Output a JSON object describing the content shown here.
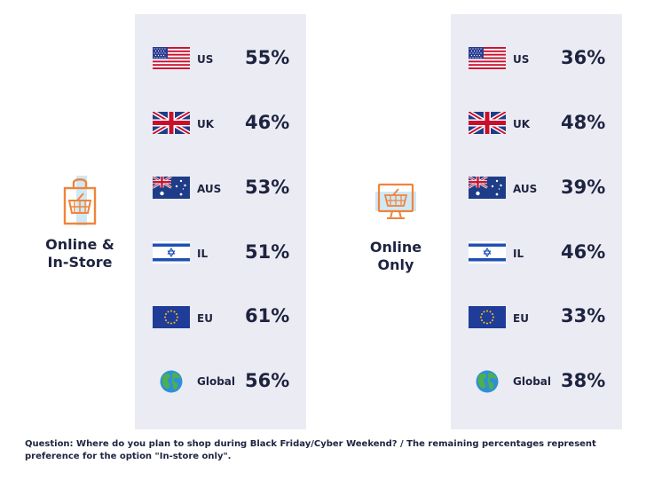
{
  "chart_data": {
    "type": "table",
    "categories": [
      "US",
      "UK",
      "AUS",
      "IL",
      "EU",
      "Global"
    ],
    "series": [
      {
        "name": "Online & In-Store",
        "values": [
          55,
          46,
          53,
          51,
          61,
          56
        ]
      },
      {
        "name": "Online Only",
        "values": [
          36,
          48,
          39,
          46,
          33,
          38
        ]
      }
    ],
    "unit": "%"
  },
  "panels": [
    {
      "title_line1": "Online &",
      "title_line2": "In-Store",
      "icon": "shopping-bag-basket-icon",
      "rows": [
        {
          "flag": "us-flag",
          "country": "US",
          "value": "55%"
        },
        {
          "flag": "uk-flag",
          "country": "UK",
          "value": "46%"
        },
        {
          "flag": "aus-flag",
          "country": "AUS",
          "value": "53%"
        },
        {
          "flag": "il-flag",
          "country": "IL",
          "value": "51%"
        },
        {
          "flag": "eu-flag",
          "country": "EU",
          "value": "61%"
        },
        {
          "flag": "globe-icon",
          "country": "Global",
          "value": "56%"
        }
      ]
    },
    {
      "title_line1": "Online",
      "title_line2": "Only",
      "icon": "monitor-basket-icon",
      "rows": [
        {
          "flag": "us-flag",
          "country": "US",
          "value": "36%"
        },
        {
          "flag": "uk-flag",
          "country": "UK",
          "value": "48%"
        },
        {
          "flag": "aus-flag",
          "country": "AUS",
          "value": "39%"
        },
        {
          "flag": "il-flag",
          "country": "IL",
          "value": "46%"
        },
        {
          "flag": "eu-flag",
          "country": "EU",
          "value": "33%"
        },
        {
          "flag": "globe-icon",
          "country": "Global",
          "value": "38%"
        }
      ]
    }
  ],
  "colors": {
    "accent_orange": "#f0843a",
    "accent_light_blue": "#cfe8f6",
    "panel_gray": "#ebecf3",
    "text_navy": "#1e2340"
  },
  "footnote": {
    "line1": "Question: Where do you plan to shop during Black Friday/Cyber Weekend? / The remaining percentages represent",
    "line2": "preference for the option \"In-store only\"."
  }
}
